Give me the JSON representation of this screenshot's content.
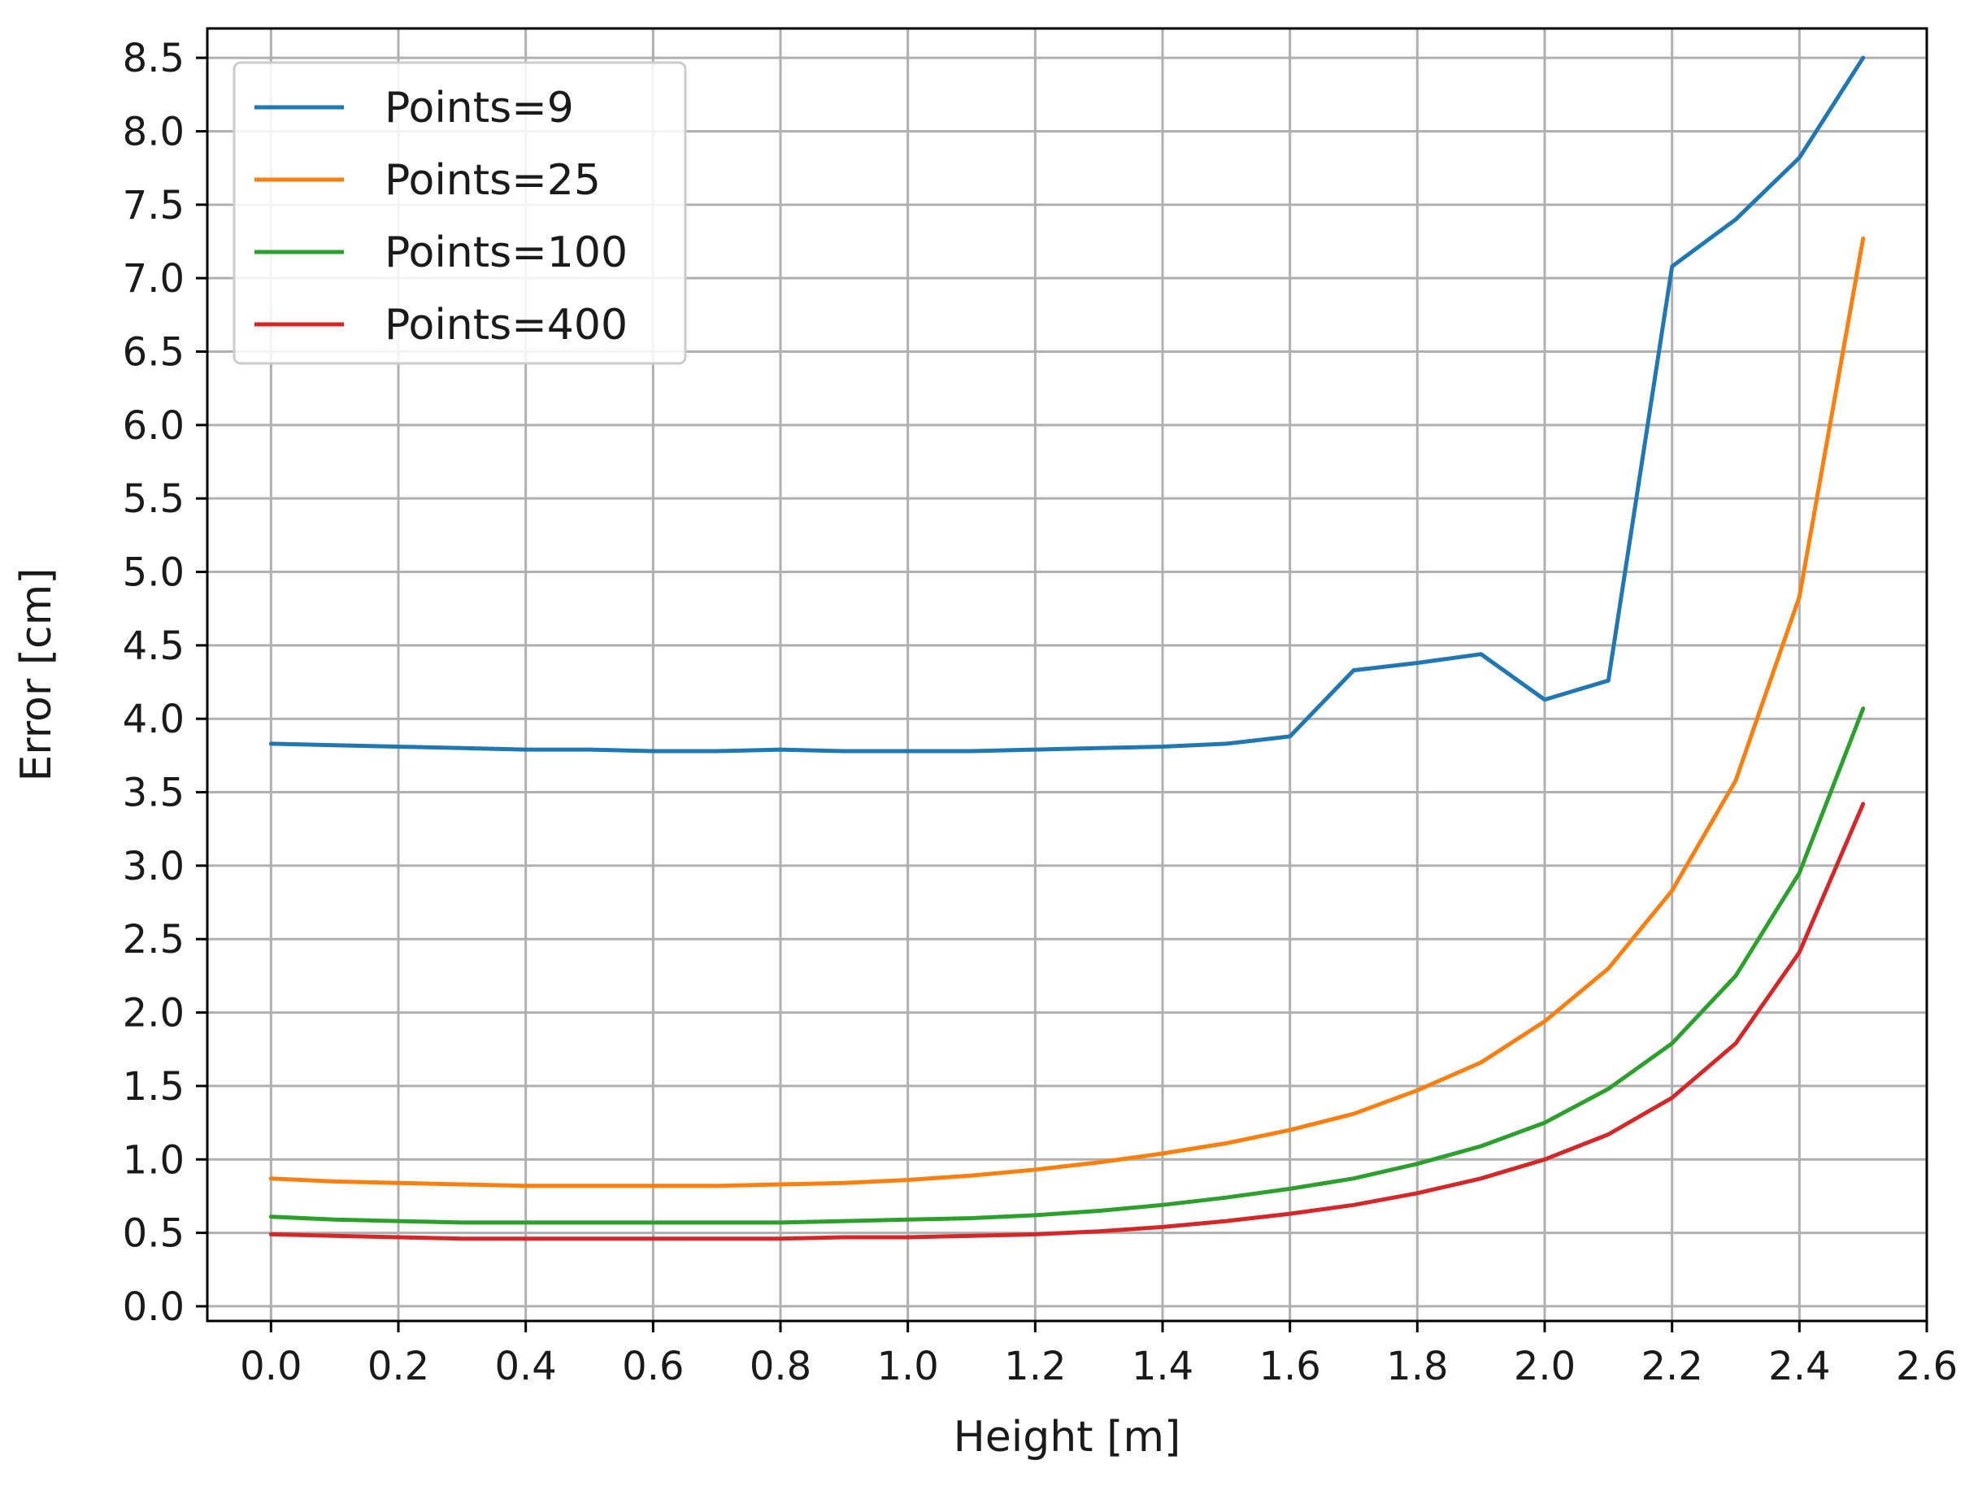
{
  "chart_data": {
    "type": "line",
    "xlabel": "Height [m]",
    "ylabel": "Error [cm]",
    "xlim": [
      -0.1,
      2.6
    ],
    "ylim": [
      -0.1,
      8.7
    ],
    "xticks": [
      "0.0",
      "0.2",
      "0.4",
      "0.6",
      "0.8",
      "1.0",
      "1.2",
      "1.4",
      "1.6",
      "1.8",
      "2.0",
      "2.2",
      "2.4",
      "2.6"
    ],
    "yticks": [
      "0.0",
      "0.5",
      "1.0",
      "1.5",
      "2.0",
      "2.5",
      "3.0",
      "3.5",
      "4.0",
      "4.5",
      "5.0",
      "5.5",
      "6.0",
      "6.5",
      "7.0",
      "7.5",
      "8.0",
      "8.5"
    ],
    "grid": true,
    "legend_position": "top-left",
    "x": [
      0.0,
      0.1,
      0.2,
      0.3,
      0.4,
      0.5,
      0.6,
      0.7,
      0.8,
      0.9,
      1.0,
      1.1,
      1.2,
      1.3,
      1.4,
      1.5,
      1.6,
      1.7,
      1.8,
      1.9,
      2.0,
      2.1,
      2.2,
      2.3,
      2.4,
      2.5
    ],
    "series": [
      {
        "name": "Points=9",
        "color": "#1f77b4",
        "values": [
          3.83,
          3.82,
          3.81,
          3.8,
          3.79,
          3.79,
          3.78,
          3.78,
          3.79,
          3.78,
          3.78,
          3.78,
          3.79,
          3.8,
          3.81,
          3.83,
          3.88,
          4.33,
          4.38,
          4.44,
          4.13,
          4.26,
          7.08,
          7.4,
          7.82,
          8.5
        ]
      },
      {
        "name": "Points=25",
        "color": "#ff7f0e",
        "values": [
          0.87,
          0.85,
          0.84,
          0.83,
          0.82,
          0.82,
          0.82,
          0.82,
          0.83,
          0.84,
          0.86,
          0.89,
          0.93,
          0.98,
          1.04,
          1.11,
          1.2,
          1.31,
          1.47,
          1.66,
          1.94,
          2.3,
          2.83,
          3.58,
          4.83,
          7.27
        ]
      },
      {
        "name": "Points=100",
        "color": "#2ca02c",
        "values": [
          0.61,
          0.59,
          0.58,
          0.57,
          0.57,
          0.57,
          0.57,
          0.57,
          0.57,
          0.58,
          0.59,
          0.6,
          0.62,
          0.65,
          0.69,
          0.74,
          0.8,
          0.87,
          0.97,
          1.09,
          1.25,
          1.48,
          1.79,
          2.25,
          2.95,
          4.07
        ]
      },
      {
        "name": "Points=400",
        "color": "#d62728",
        "values": [
          0.49,
          0.48,
          0.47,
          0.46,
          0.46,
          0.46,
          0.46,
          0.46,
          0.46,
          0.47,
          0.47,
          0.48,
          0.49,
          0.51,
          0.54,
          0.58,
          0.63,
          0.69,
          0.77,
          0.87,
          1.0,
          1.17,
          1.42,
          1.79,
          2.41,
          3.42
        ]
      }
    ]
  }
}
